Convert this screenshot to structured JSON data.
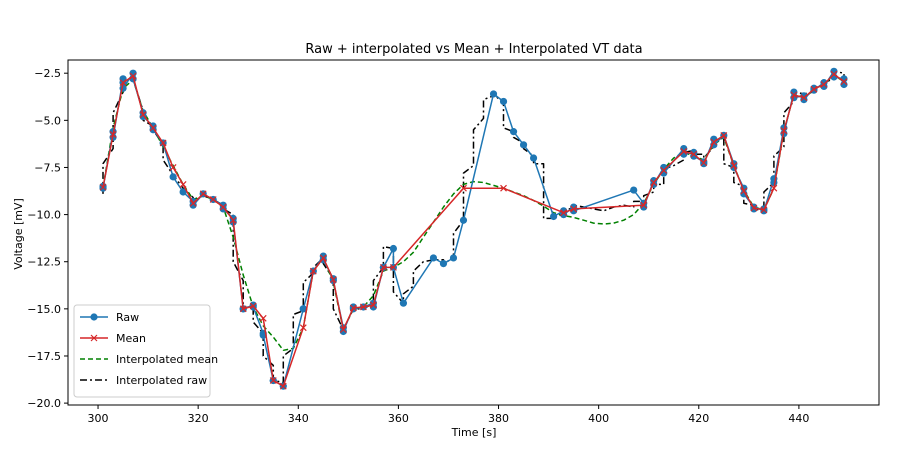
{
  "chart_data": {
    "type": "line",
    "title": "Raw + interpolated vs Mean + Interpolated  VT data",
    "xlabel": "Time [s]",
    "ylabel": "Voltage [mV]",
    "xlim": [
      294,
      456
    ],
    "ylim": [
      -20.1,
      -1.8
    ],
    "xticks": [
      300,
      320,
      340,
      360,
      380,
      400,
      420,
      440
    ],
    "xtick_labels": [
      "300",
      "320",
      "340",
      "360",
      "380",
      "400",
      "420",
      "440"
    ],
    "yticks": [
      -2.5,
      -5.0,
      -7.5,
      -10.0,
      -12.5,
      -15.0,
      -17.5,
      -20.0
    ],
    "ytick_labels": [
      "−2.5",
      "−5.0",
      "−7.5",
      "−10.0",
      "−12.5",
      "−15.0",
      "−17.5",
      "−20.0"
    ],
    "grid": false,
    "legend_position": "lower-left",
    "series": [
      {
        "name": "Raw",
        "color": "#1f77b4",
        "style": "solid-circle",
        "x": [
          301,
          301,
          303,
          303,
          305,
          305,
          305,
          307,
          307,
          309,
          309,
          311,
          311,
          313,
          315,
          317,
          319,
          319,
          321,
          323,
          325,
          325,
          327,
          327,
          329,
          329,
          331,
          331,
          333,
          333,
          335,
          335,
          337,
          341,
          341,
          343,
          345,
          345,
          347,
          347,
          349,
          349,
          351,
          351,
          353,
          355,
          355,
          357,
          357,
          359,
          359,
          361,
          367,
          369,
          371,
          373,
          379,
          381,
          383,
          385,
          387,
          391,
          393,
          393,
          395,
          395,
          407,
          409,
          409,
          411,
          411,
          413,
          413,
          417,
          417,
          419,
          419,
          421,
          421,
          423,
          423,
          425,
          427,
          427,
          429,
          429,
          431,
          431,
          433,
          433,
          435,
          435,
          437,
          437,
          439,
          439,
          441,
          441,
          443,
          443,
          445,
          445,
          447,
          447,
          449,
          449
        ],
        "y": [
          -8.5,
          -8.6,
          -5.6,
          -5.9,
          -2.8,
          -3.0,
          -3.3,
          -2.5,
          -2.8,
          -4.6,
          -4.8,
          -5.3,
          -5.5,
          -6.2,
          -8.0,
          -8.8,
          -9.3,
          -9.5,
          -8.9,
          -9.2,
          -9.5,
          -9.7,
          -10.2,
          -10.4,
          -15.0,
          -15.0,
          -14.8,
          -14.9,
          -16.3,
          -16.4,
          -18.8,
          -18.8,
          -19.1,
          -15.0,
          -15.0,
          -13.0,
          -12.2,
          -12.4,
          -13.4,
          -13.5,
          -16.0,
          -16.2,
          -14.9,
          -15.0,
          -14.9,
          -14.7,
          -14.9,
          -12.8,
          -12.8,
          -11.8,
          -12.8,
          -14.7,
          -12.3,
          -12.6,
          -12.3,
          -10.3,
          -3.6,
          -4.0,
          -5.6,
          -6.3,
          -7.0,
          -10.1,
          -9.8,
          -10.0,
          -9.6,
          -9.8,
          -8.7,
          -9.4,
          -9.6,
          -8.2,
          -8.4,
          -7.5,
          -7.8,
          -6.5,
          -6.8,
          -6.7,
          -6.9,
          -7.2,
          -7.3,
          -6.0,
          -6.3,
          -5.8,
          -7.3,
          -7.5,
          -8.6,
          -8.9,
          -9.6,
          -9.7,
          -9.7,
          -9.8,
          -8.1,
          -8.3,
          -5.4,
          -5.7,
          -3.5,
          -3.8,
          -3.7,
          -3.9,
          -3.3,
          -3.4,
          -3.0,
          -3.2,
          -2.4,
          -2.7,
          -2.8,
          -3.1
        ]
      },
      {
        "name": "Mean",
        "color": "#d62728",
        "style": "solid-x",
        "x": [
          301,
          303,
          305,
          307,
          309,
          311,
          313,
          315,
          317,
          319,
          321,
          323,
          325,
          327,
          329,
          331,
          333,
          335,
          337,
          341,
          343,
          345,
          347,
          349,
          351,
          353,
          355,
          357,
          359,
          373,
          381,
          393,
          395,
          409,
          411,
          413,
          417,
          419,
          421,
          423,
          425,
          427,
          429,
          431,
          433,
          435,
          437,
          439,
          441,
          443,
          445,
          447,
          449
        ],
        "y": [
          -8.55,
          -5.75,
          -3.0,
          -2.65,
          -4.7,
          -5.4,
          -6.2,
          -7.5,
          -8.4,
          -9.4,
          -8.9,
          -9.2,
          -9.6,
          -10.3,
          -15.0,
          -14.85,
          -15.5,
          -18.8,
          -19.1,
          -16.0,
          -13.0,
          -12.3,
          -13.45,
          -16.1,
          -14.95,
          -14.9,
          -14.8,
          -12.8,
          -12.8,
          -8.6,
          -8.6,
          -9.9,
          -9.7,
          -9.5,
          -8.3,
          -7.65,
          -6.65,
          -6.8,
          -7.25,
          -6.15,
          -5.8,
          -7.4,
          -8.75,
          -9.65,
          -9.75,
          -8.6,
          -5.55,
          -3.65,
          -3.8,
          -3.35,
          -3.1,
          -2.55,
          -2.95
        ]
      },
      {
        "name": "Interpolated mean",
        "color": "#008000",
        "style": "dashed",
        "x": [
          301,
          303,
          305,
          307,
          309,
          311,
          313,
          315,
          317,
          319,
          321,
          323,
          325,
          327,
          329,
          331,
          333,
          335,
          337,
          339,
          341,
          343,
          345,
          347,
          349,
          351,
          353,
          355,
          357,
          359,
          361,
          363,
          365,
          367,
          369,
          371,
          373,
          375,
          377,
          379,
          381,
          383,
          385,
          387,
          389,
          391,
          393,
          395,
          397,
          399,
          401,
          403,
          405,
          407,
          409,
          411,
          413,
          415,
          417,
          419,
          421,
          423,
          425,
          427,
          429,
          431,
          433,
          435,
          437,
          439,
          441,
          443,
          445,
          447,
          449
        ],
        "y": [
          -8.55,
          -5.4,
          -3.3,
          -2.85,
          -4.5,
          -5.4,
          -6.4,
          -7.4,
          -8.4,
          -9.2,
          -9.0,
          -9.2,
          -9.6,
          -11.2,
          -13.2,
          -14.9,
          -15.9,
          -16.5,
          -17.2,
          -17.1,
          -16.0,
          -13.0,
          -12.3,
          -13.6,
          -16.1,
          -15.0,
          -14.9,
          -14.3,
          -13.0,
          -12.8,
          -12.5,
          -12.0,
          -11.2,
          -10.4,
          -9.6,
          -8.9,
          -8.4,
          -8.25,
          -8.3,
          -8.45,
          -8.6,
          -8.8,
          -9.0,
          -9.25,
          -9.55,
          -9.9,
          -10.05,
          -10.15,
          -10.3,
          -10.45,
          -10.5,
          -10.45,
          -10.3,
          -10.0,
          -9.4,
          -8.4,
          -7.6,
          -7.0,
          -6.7,
          -6.9,
          -7.1,
          -6.3,
          -5.9,
          -7.4,
          -8.7,
          -9.6,
          -9.75,
          -8.6,
          -5.6,
          -3.6,
          -3.8,
          -3.4,
          -3.1,
          -2.6,
          -2.95
        ]
      },
      {
        "name": "Interpolated raw",
        "color": "#000000",
        "style": "dashdot",
        "x": [
          301,
          301,
          303,
          303,
          305,
          305,
          305,
          307,
          307,
          309,
          309,
          311,
          311,
          313,
          313,
          315,
          317,
          319,
          319,
          321,
          323,
          325,
          325,
          327,
          327,
          329,
          329,
          331,
          331,
          333,
          333,
          335,
          335,
          337,
          337,
          339,
          339,
          341,
          341,
          343,
          343,
          345,
          345,
          347,
          347,
          349,
          349,
          351,
          351,
          353,
          355,
          355,
          357,
          357,
          359,
          359,
          361,
          361,
          363,
          363,
          365,
          367,
          367,
          369,
          369,
          371,
          371,
          373,
          373,
          375,
          375,
          377,
          377,
          379,
          379,
          381,
          381,
          383,
          383,
          385,
          385,
          387,
          387,
          389,
          389,
          391,
          391,
          393,
          393,
          395,
          395,
          397,
          399,
          401,
          403,
          405,
          407,
          407,
          409,
          409,
          411,
          411,
          413,
          413,
          415,
          417,
          417,
          419,
          419,
          421,
          421,
          423,
          423,
          425,
          425,
          427,
          427,
          429,
          429,
          431,
          431,
          433,
          433,
          435,
          435,
          437,
          437,
          439,
          439,
          441,
          441,
          443,
          443,
          445,
          445,
          447,
          447,
          449,
          449
        ],
        "y": [
          -8.9,
          -7.3,
          -6.5,
          -4.6,
          -3.5,
          -3.1,
          -3.1,
          -2.6,
          -2.8,
          -4.5,
          -5.0,
          -5.3,
          -5.5,
          -6.3,
          -7.1,
          -7.9,
          -8.6,
          -9.1,
          -9.3,
          -9.0,
          -9.2,
          -9.5,
          -9.7,
          -10.0,
          -12.5,
          -13.5,
          -15.0,
          -14.8,
          -15.7,
          -16.3,
          -17.5,
          -18.0,
          -18.8,
          -18.9,
          -17.5,
          -17.1,
          -15.3,
          -15.1,
          -13.6,
          -13.1,
          -12.8,
          -12.3,
          -12.6,
          -13.4,
          -15.0,
          -16.1,
          -16.1,
          -15.0,
          -15.0,
          -15.0,
          -14.7,
          -13.5,
          -12.8,
          -11.7,
          -11.8,
          -14.1,
          -14.7,
          -14.2,
          -13.8,
          -13.0,
          -12.5,
          -12.4,
          -12.4,
          -12.4,
          -12.6,
          -12.3,
          -11.0,
          -10.3,
          -7.8,
          -7.4,
          -5.5,
          -4.9,
          -3.9,
          -3.7,
          -3.6,
          -4.1,
          -5.4,
          -5.6,
          -5.9,
          -6.2,
          -6.5,
          -6.9,
          -7.3,
          -7.3,
          -10.2,
          -10.2,
          -10.1,
          -10.0,
          -9.7,
          -9.7,
          -9.5,
          -9.6,
          -9.7,
          -9.8,
          -9.6,
          -9.5,
          -9.6,
          -9.3,
          -9.3,
          -9.0,
          -8.8,
          -8.4,
          -8.4,
          -7.6,
          -7.4,
          -7.1,
          -6.7,
          -6.6,
          -6.8,
          -6.8,
          -7.0,
          -6.4,
          -6.1,
          -5.9,
          -7.3,
          -7.5,
          -8.3,
          -8.5,
          -9.4,
          -9.5,
          -9.7,
          -9.8,
          -8.8,
          -8.3,
          -6.9,
          -6.4,
          -4.6,
          -4.0,
          -3.5,
          -3.6,
          -3.6,
          -3.5,
          -3.3,
          -3.1,
          -3.0,
          -2.8,
          -2.4,
          -2.5,
          -2.7
        ]
      }
    ]
  }
}
